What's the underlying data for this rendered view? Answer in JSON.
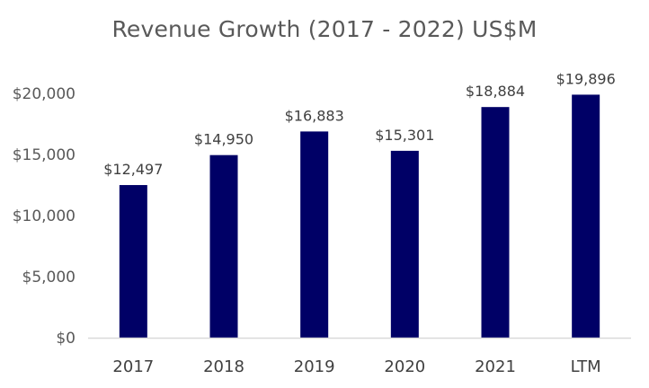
{
  "chart_data": {
    "type": "bar",
    "title": "Revenue Growth (2017 - 2022) US$M",
    "categories": [
      "2017",
      "2018",
      "2019",
      "2020",
      "2021",
      "LTM"
    ],
    "values": [
      12497,
      14950,
      16883,
      15301,
      18884,
      19896
    ],
    "data_labels": [
      "$12,497",
      "$14,950",
      "$16,883",
      "$15,301",
      "$18,884",
      "$19,896"
    ],
    "y_ticks": [
      0,
      5000,
      10000,
      15000,
      20000
    ],
    "y_tick_labels": [
      "$0",
      "$5,000",
      "$10,000",
      "$15,000",
      "$20,000"
    ],
    "ylim": [
      0,
      20000
    ],
    "xlabel": "",
    "ylabel": "",
    "grid": false,
    "legend": "none",
    "bar_color": "#000066",
    "axis_color": "#d9d9d9"
  }
}
